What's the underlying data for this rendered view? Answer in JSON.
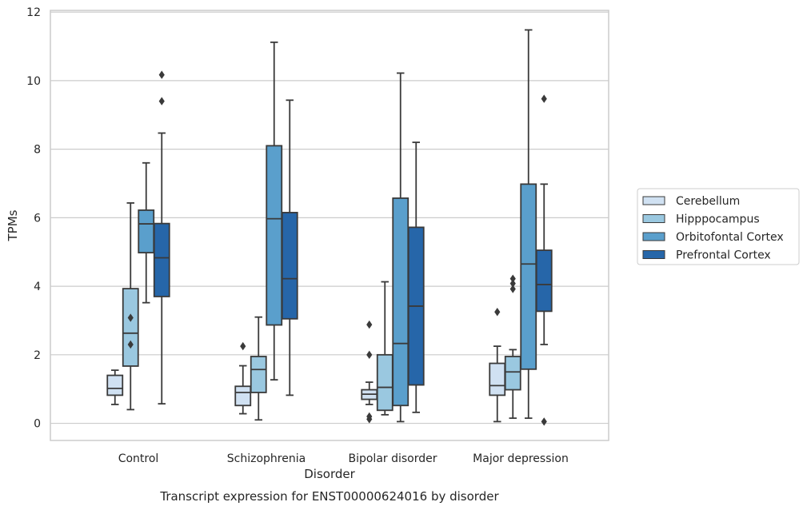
{
  "chart_data": {
    "type": "boxplot",
    "title": "",
    "caption": "Transcript expression for ENST00000624016 by disorder",
    "xlabel": "Disorder",
    "ylabel": "TPMs",
    "ylim": [
      -0.5,
      12.05
    ],
    "yticks": [
      0,
      2,
      4,
      6,
      8,
      10,
      12
    ],
    "grid": "horizontal",
    "legend_position": "right",
    "categories": [
      "Control",
      "Schizophrenia",
      "Bipolar disorder",
      "Major depression"
    ],
    "series": [
      {
        "name": "Cerebellum",
        "color": "#d0e1f2",
        "boxes": [
          {
            "whisker_low": 0.55,
            "q1": 0.82,
            "median": 1.02,
            "q3": 1.4,
            "whisker_high": 1.55,
            "outliers": []
          },
          {
            "whisker_low": 0.28,
            "q1": 0.52,
            "median": 0.9,
            "q3": 1.08,
            "whisker_high": 1.68,
            "outliers": [
              2.25
            ]
          },
          {
            "whisker_low": 0.55,
            "q1": 0.7,
            "median": 0.85,
            "q3": 0.98,
            "whisker_high": 1.2,
            "outliers": [
              2.88,
              2.0,
              0.2,
              0.12
            ]
          },
          {
            "whisker_low": 0.05,
            "q1": 0.82,
            "median": 1.1,
            "q3": 1.75,
            "whisker_high": 2.25,
            "outliers": [
              3.25
            ]
          }
        ]
      },
      {
        "name": "Hipppocampus",
        "color": "#9ac8e0",
        "boxes": [
          {
            "whisker_low": 0.4,
            "q1": 1.67,
            "median": 2.63,
            "q3": 3.93,
            "whisker_high": 6.43,
            "outliers": [
              3.08,
              2.3
            ]
          },
          {
            "whisker_low": 0.1,
            "q1": 0.9,
            "median": 1.57,
            "q3": 1.95,
            "whisker_high": 3.1,
            "outliers": []
          },
          {
            "whisker_low": 0.25,
            "q1": 0.38,
            "median": 1.05,
            "q3": 2.0,
            "whisker_high": 4.13,
            "outliers": []
          },
          {
            "whisker_low": 0.15,
            "q1": 0.98,
            "median": 1.5,
            "q3": 1.95,
            "whisker_high": 2.15,
            "outliers": [
              4.22,
              4.08,
              3.92
            ]
          }
        ]
      },
      {
        "name": "Orbitofontal Cortex",
        "color": "#5a9fcc",
        "boxes": [
          {
            "whisker_low": 3.52,
            "q1": 4.98,
            "median": 5.82,
            "q3": 6.22,
            "whisker_high": 7.6,
            "outliers": []
          },
          {
            "whisker_low": 1.27,
            "q1": 2.87,
            "median": 5.97,
            "q3": 8.1,
            "whisker_high": 11.12,
            "outliers": []
          },
          {
            "whisker_low": 0.05,
            "q1": 0.52,
            "median": 2.33,
            "q3": 6.57,
            "whisker_high": 10.22,
            "outliers": []
          },
          {
            "whisker_low": 0.15,
            "q1": 1.58,
            "median": 4.65,
            "q3": 6.98,
            "whisker_high": 11.48,
            "outliers": []
          }
        ]
      },
      {
        "name": "Prefrontal Cortex",
        "color": "#2666a9",
        "boxes": [
          {
            "whisker_low": 0.57,
            "q1": 3.7,
            "median": 4.83,
            "q3": 5.83,
            "whisker_high": 8.47,
            "outliers": [
              10.17,
              9.4
            ]
          },
          {
            "whisker_low": 0.82,
            "q1": 3.05,
            "median": 4.22,
            "q3": 6.15,
            "whisker_high": 9.43,
            "outliers": []
          },
          {
            "whisker_low": 0.32,
            "q1": 1.12,
            "median": 3.42,
            "q3": 5.72,
            "whisker_high": 8.2,
            "outliers": []
          },
          {
            "whisker_low": 2.3,
            "q1": 3.27,
            "median": 4.05,
            "q3": 5.05,
            "whisker_high": 6.98,
            "outliers": [
              9.47,
              0.05
            ]
          }
        ]
      }
    ]
  }
}
